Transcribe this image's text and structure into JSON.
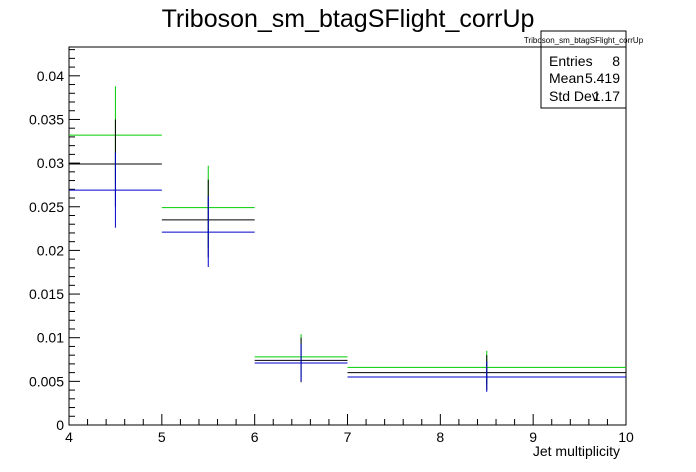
{
  "title": "Triboson_sm_btagSFlight_corrUp",
  "stats_box": {
    "name": "Triboson_sm_btagSFlight_corrUp",
    "rows": [
      {
        "label": "Entries",
        "value": "8"
      },
      {
        "label": "Mean",
        "value": "5.419"
      },
      {
        "label": "Std Dev",
        "value": "1.17"
      }
    ]
  },
  "chart_data": {
    "type": "scatter",
    "title": "Triboson_sm_btagSFlight_corrUp",
    "xlabel": "Jet multiplicity",
    "ylabel": "",
    "xlim": [
      4,
      10
    ],
    "ylim": [
      0,
      0.0433
    ],
    "x_ticks": [
      "4",
      "5",
      "6",
      "7",
      "8",
      "9",
      "10"
    ],
    "y_ticks": [
      "0",
      "0.005",
      "0.01",
      "0.015",
      "0.02",
      "0.025",
      "0.03",
      "0.035",
      "0.04"
    ],
    "grid": false,
    "series": [
      {
        "color": "#00cc00",
        "points": [
          {
            "xlo": 4,
            "xhi": 5,
            "xc": 4.5,
            "y": 0.0332,
            "ylo": 0.0278,
            "yhi": 0.0388
          },
          {
            "xlo": 5,
            "xhi": 6,
            "xc": 5.5,
            "y": 0.0249,
            "ylo": 0.0204,
            "yhi": 0.0297
          },
          {
            "xlo": 6,
            "xhi": 7,
            "xc": 6.5,
            "y": 0.0078,
            "ylo": 0.0055,
            "yhi": 0.0104
          },
          {
            "xlo": 7,
            "xhi": 10,
            "xc": 8.5,
            "y": 0.0066,
            "ylo": 0.0047,
            "yhi": 0.0085
          }
        ]
      },
      {
        "color": "#000000",
        "points": [
          {
            "xlo": 4,
            "xhi": 5,
            "xc": 4.5,
            "y": 0.0299,
            "ylo": 0.025,
            "yhi": 0.035
          },
          {
            "xlo": 5,
            "xhi": 6,
            "xc": 5.5,
            "y": 0.0235,
            "ylo": 0.0192,
            "yhi": 0.0281
          },
          {
            "xlo": 6,
            "xhi": 7,
            "xc": 6.5,
            "y": 0.0074,
            "ylo": 0.0049,
            "yhi": 0.01
          },
          {
            "xlo": 7,
            "xhi": 10,
            "xc": 8.5,
            "y": 0.006,
            "ylo": 0.004,
            "yhi": 0.008
          }
        ]
      },
      {
        "color": "#0000cc",
        "points": [
          {
            "xlo": 4,
            "xhi": 5,
            "xc": 4.5,
            "y": 0.0269,
            "ylo": 0.0226,
            "yhi": 0.0312
          },
          {
            "xlo": 5,
            "xhi": 6,
            "xc": 5.5,
            "y": 0.0221,
            "ylo": 0.0181,
            "yhi": 0.0262
          },
          {
            "xlo": 6,
            "xhi": 7,
            "xc": 6.5,
            "y": 0.0071,
            "ylo": 0.005,
            "yhi": 0.0093
          },
          {
            "xlo": 7,
            "xhi": 10,
            "xc": 8.5,
            "y": 0.0055,
            "ylo": 0.0038,
            "yhi": 0.0073
          }
        ]
      }
    ]
  }
}
